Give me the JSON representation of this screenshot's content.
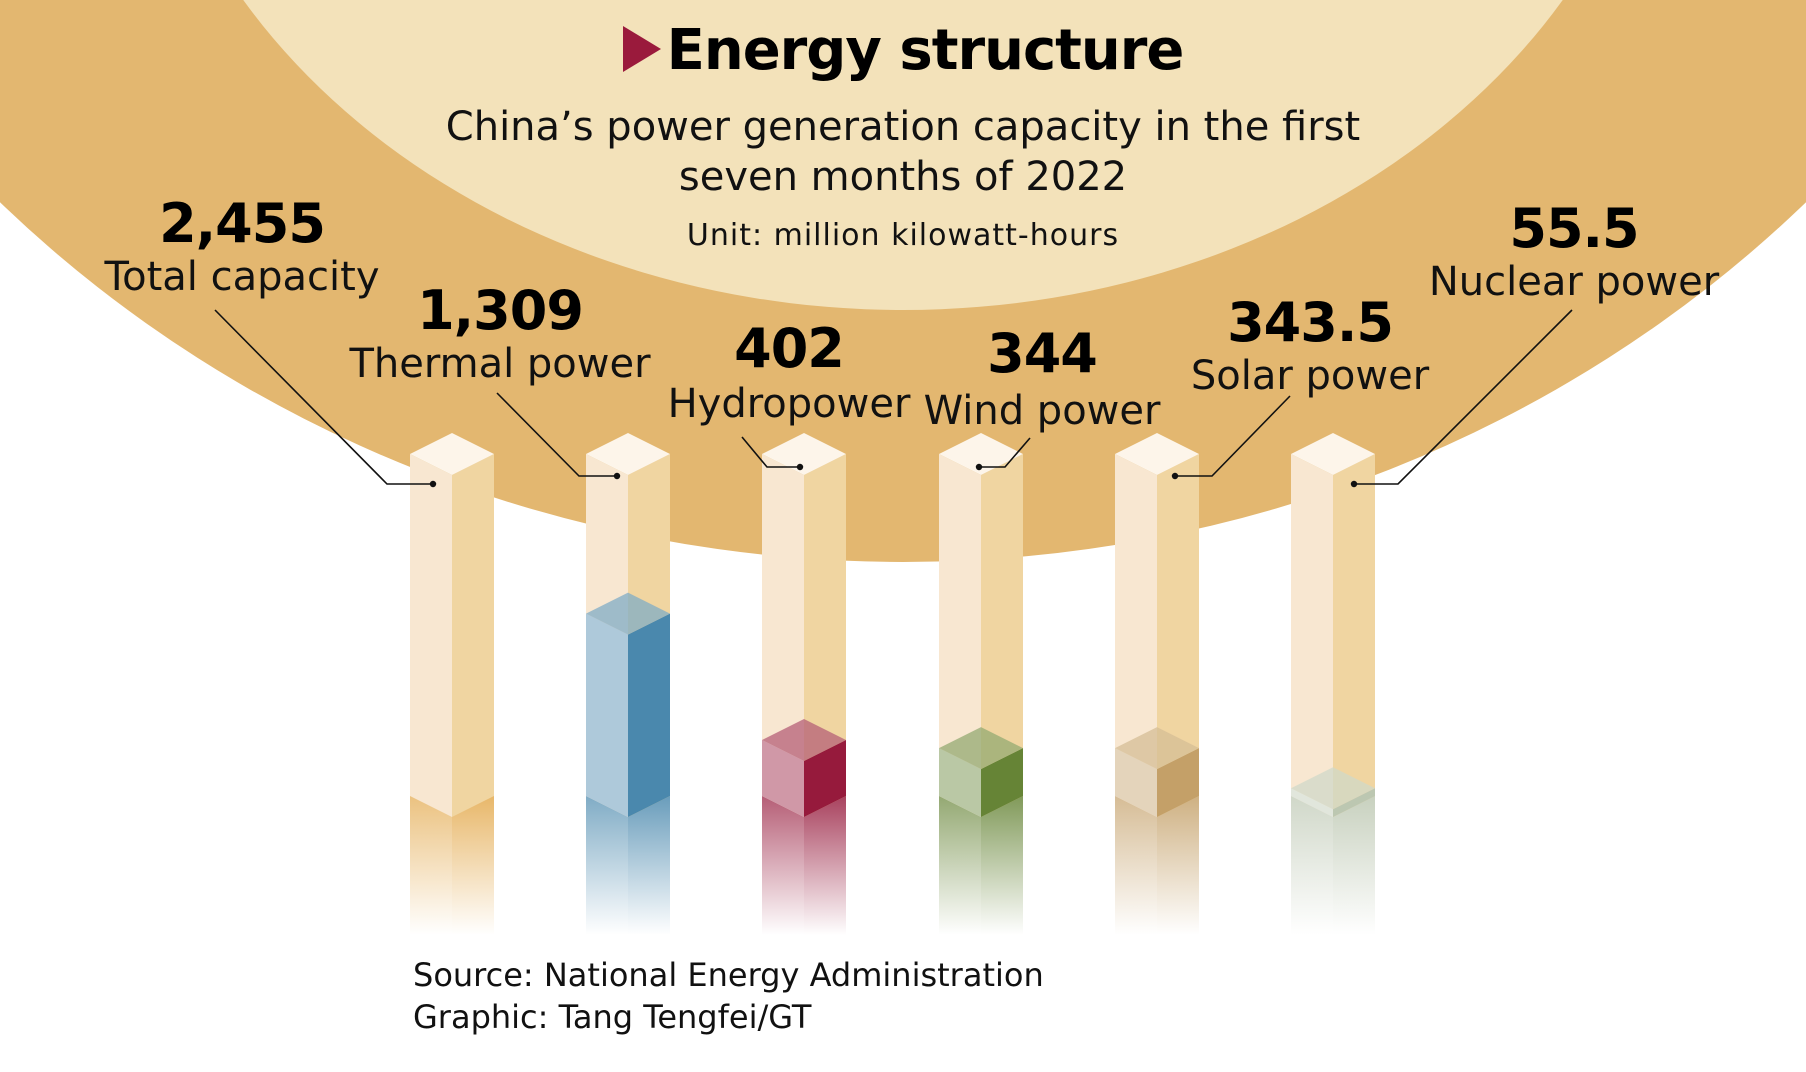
{
  "header": {
    "title": "Energy structure",
    "subtitle_line1": "China’s power generation capacity in the first",
    "subtitle_line2": "seven months of 2022",
    "unit": "Unit: million kilowatt-hours"
  },
  "colors": {
    "outer_ring": "#e3b770",
    "inner_circle": "#f3e2ba",
    "marker": "#9a1a3c",
    "total": "#e3a84a",
    "thermal": "#4a88ad",
    "hydro": "#961a3c",
    "wind": "#668436",
    "solar": "#c4a068",
    "nuclear": "#bcc7b1"
  },
  "chart_data": {
    "type": "bar",
    "title": "Energy structure",
    "subtitle": "China’s power generation capacity in the first seven months of 2022",
    "ylabel": "Unit: million kilowatt-hours",
    "categories": [
      "Total capacity",
      "Thermal power",
      "Hydropower",
      "Wind power",
      "Solar power",
      "Nuclear power"
    ],
    "values": [
      2455,
      1309,
      402,
      344,
      343.5,
      55.5
    ],
    "value_labels": [
      "2,455",
      "1,309",
      "402",
      "344",
      "343.5",
      "55.5"
    ],
    "color_keys": [
      "total",
      "thermal",
      "hydro",
      "wind",
      "solar",
      "nuclear"
    ],
    "ylim": [
      0,
      2455
    ]
  },
  "footer": {
    "source": "Source: National Energy Administration",
    "credit": "Graphic: Tang Tengfei/GT"
  }
}
